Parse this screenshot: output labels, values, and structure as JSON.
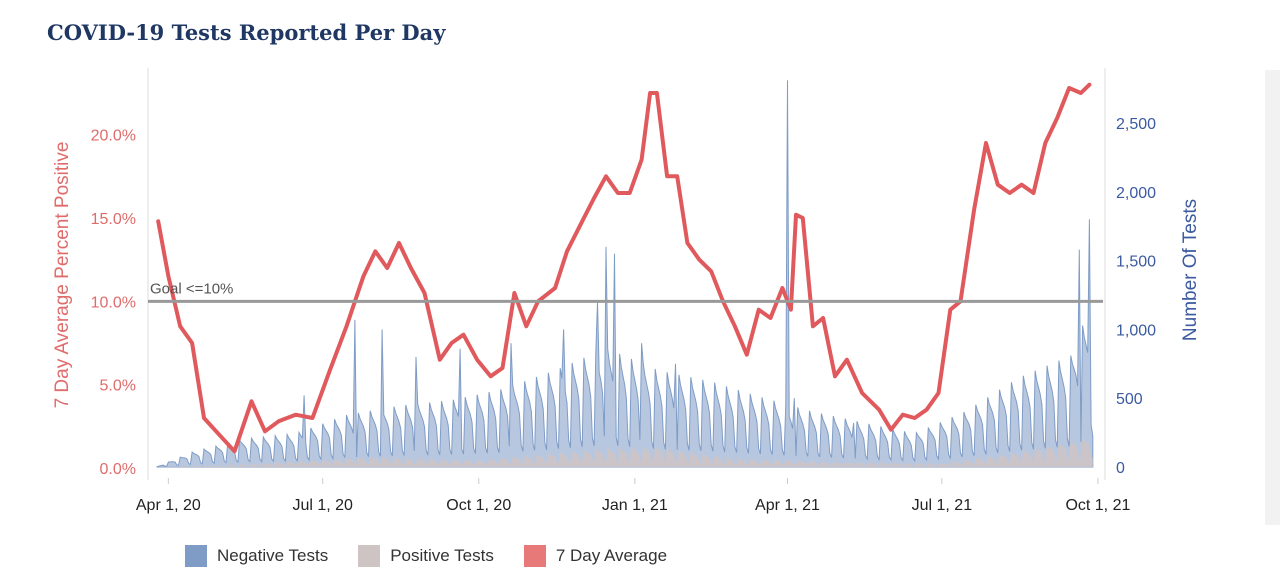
{
  "title": "COVID-19 Tests Reported Per Day",
  "colors": {
    "negative": "#7f9cc6",
    "negative_fill": "#9fb4d6",
    "positive": "#cfc4c4",
    "average": "#e0595d",
    "goal": "#999999",
    "left_axis": "#e06b6b",
    "right_axis": "#3b5aa0"
  },
  "legend": [
    {
      "label": "Negative Tests",
      "color": "#7f9cc6"
    },
    {
      "label": "Positive Tests",
      "color": "#cfc4c4"
    },
    {
      "label": "7 Day Average",
      "color": "#e87979"
    }
  ],
  "chart_data": {
    "type": "line",
    "title": "COVID-19 Tests Reported Per Day",
    "x_start": "2020-03-25",
    "x_end": "2021-09-28",
    "xlim": [
      "2020-03-20",
      "2021-10-04"
    ],
    "x_ticks": [
      {
        "date": "2020-04-01",
        "label": "Apr 1, 20"
      },
      {
        "date": "2020-07-01",
        "label": "Jul 1, 20"
      },
      {
        "date": "2020-10-01",
        "label": "Oct 1, 20"
      },
      {
        "date": "2021-01-01",
        "label": "Jan 1, 21"
      },
      {
        "date": "2021-04-01",
        "label": "Apr 1, 21"
      },
      {
        "date": "2021-07-01",
        "label": "Jul 1, 21"
      },
      {
        "date": "2021-10-01",
        "label": "Oct 1, 21"
      }
    ],
    "y_left": {
      "label": "7 Day Average Percent Positive",
      "ylim": [
        -0.6,
        24.0
      ],
      "ticks": [
        {
          "v": 0,
          "label": "0.0%"
        },
        {
          "v": 5,
          "label": "5.0%"
        },
        {
          "v": 10,
          "label": "10.0%"
        },
        {
          "v": 15,
          "label": "15.0%"
        },
        {
          "v": 20,
          "label": "20.0%"
        }
      ]
    },
    "y_right": {
      "label": "Number Of Tests",
      "ylim": [
        -80,
        2900
      ],
      "ticks": [
        {
          "v": 0,
          "label": "0"
        },
        {
          "v": 500,
          "label": "500"
        },
        {
          "v": 1000,
          "label": "1,000"
        },
        {
          "v": 1500,
          "label": "1,500"
        },
        {
          "v": 2000,
          "label": "2,000"
        },
        {
          "v": 2500,
          "label": "2,500"
        }
      ]
    },
    "goal": {
      "value": 10,
      "label": "Goal <=10%"
    },
    "series": [
      {
        "name": "7 Day Average",
        "axis": "left",
        "points": [
          [
            "2020-03-26",
            14.8
          ],
          [
            "2020-04-01",
            11.5
          ],
          [
            "2020-04-08",
            8.5
          ],
          [
            "2020-04-15",
            7.5
          ],
          [
            "2020-04-22",
            3.0
          ],
          [
            "2020-05-01",
            2.0
          ],
          [
            "2020-05-10",
            1.0
          ],
          [
            "2020-05-20",
            4.0
          ],
          [
            "2020-05-28",
            2.2
          ],
          [
            "2020-06-05",
            2.8
          ],
          [
            "2020-06-15",
            3.2
          ],
          [
            "2020-06-25",
            3.0
          ],
          [
            "2020-07-05",
            5.8
          ],
          [
            "2020-07-15",
            8.5
          ],
          [
            "2020-07-25",
            11.5
          ],
          [
            "2020-08-01",
            13.0
          ],
          [
            "2020-08-08",
            12.0
          ],
          [
            "2020-08-15",
            13.5
          ],
          [
            "2020-08-22",
            12.0
          ],
          [
            "2020-08-30",
            10.5
          ],
          [
            "2020-09-08",
            6.5
          ],
          [
            "2020-09-15",
            7.5
          ],
          [
            "2020-09-22",
            8.0
          ],
          [
            "2020-09-30",
            6.5
          ],
          [
            "2020-10-08",
            5.5
          ],
          [
            "2020-10-15",
            6.0
          ],
          [
            "2020-10-22",
            10.5
          ],
          [
            "2020-10-29",
            8.5
          ],
          [
            "2020-11-05",
            10.0
          ],
          [
            "2020-11-15",
            10.8
          ],
          [
            "2020-11-22",
            13.0
          ],
          [
            "2020-12-01",
            14.8
          ],
          [
            "2020-12-08",
            16.2
          ],
          [
            "2020-12-15",
            17.5
          ],
          [
            "2020-12-22",
            16.5
          ],
          [
            "2020-12-29",
            16.5
          ],
          [
            "2021-01-05",
            18.5
          ],
          [
            "2021-01-10",
            22.5
          ],
          [
            "2021-01-14",
            22.5
          ],
          [
            "2021-01-20",
            17.5
          ],
          [
            "2021-01-26",
            17.5
          ],
          [
            "2021-02-01",
            13.5
          ],
          [
            "2021-02-08",
            12.5
          ],
          [
            "2021-02-15",
            11.8
          ],
          [
            "2021-02-22",
            10.0
          ],
          [
            "2021-03-01",
            8.5
          ],
          [
            "2021-03-08",
            6.8
          ],
          [
            "2021-03-15",
            9.5
          ],
          [
            "2021-03-22",
            9.0
          ],
          [
            "2021-03-29",
            10.8
          ],
          [
            "2021-04-03",
            9.5
          ],
          [
            "2021-04-06",
            15.2
          ],
          [
            "2021-04-10",
            15.0
          ],
          [
            "2021-04-16",
            8.5
          ],
          [
            "2021-04-22",
            9.0
          ],
          [
            "2021-04-29",
            5.5
          ],
          [
            "2021-05-06",
            6.5
          ],
          [
            "2021-05-15",
            4.5
          ],
          [
            "2021-05-25",
            3.5
          ],
          [
            "2021-06-01",
            2.3
          ],
          [
            "2021-06-08",
            3.2
          ],
          [
            "2021-06-15",
            3.0
          ],
          [
            "2021-06-22",
            3.5
          ],
          [
            "2021-06-29",
            4.5
          ],
          [
            "2021-07-06",
            9.5
          ],
          [
            "2021-07-12",
            10.0
          ],
          [
            "2021-07-20",
            15.5
          ],
          [
            "2021-07-27",
            19.5
          ],
          [
            "2021-08-03",
            17.0
          ],
          [
            "2021-08-10",
            16.5
          ],
          [
            "2021-08-17",
            17.0
          ],
          [
            "2021-08-24",
            16.5
          ],
          [
            "2021-08-31",
            19.5
          ],
          [
            "2021-09-07",
            21.0
          ],
          [
            "2021-09-14",
            22.8
          ],
          [
            "2021-09-21",
            22.5
          ],
          [
            "2021-09-26",
            23.0
          ]
        ]
      },
      {
        "name": "Negative Tests",
        "axis": "right",
        "envelope": [
          [
            "2020-03-25",
            0
          ],
          [
            "2020-04-15",
            80
          ],
          [
            "2020-05-15",
            150
          ],
          [
            "2020-06-15",
            180
          ],
          [
            "2020-07-15",
            280
          ],
          [
            "2020-08-15",
            330
          ],
          [
            "2020-09-15",
            360
          ],
          [
            "2020-10-15",
            420
          ],
          [
            "2020-11-15",
            520
          ],
          [
            "2020-12-15",
            640
          ],
          [
            "2021-01-15",
            520
          ],
          [
            "2021-02-15",
            460
          ],
          [
            "2021-03-15",
            380
          ],
          [
            "2021-04-15",
            300
          ],
          [
            "2021-05-15",
            240
          ],
          [
            "2021-06-15",
            180
          ],
          [
            "2021-07-15",
            300
          ],
          [
            "2021-08-15",
            480
          ],
          [
            "2021-09-15",
            600
          ],
          [
            "2021-09-28",
            900
          ]
        ],
        "spikes": [
          [
            "2020-06-20",
            520
          ],
          [
            "2020-07-20",
            1070
          ],
          [
            "2020-08-05",
            1000
          ],
          [
            "2020-08-25",
            800
          ],
          [
            "2020-09-20",
            860
          ],
          [
            "2020-10-20",
            900
          ],
          [
            "2020-11-20",
            1000
          ],
          [
            "2020-12-10",
            1200
          ],
          [
            "2020-12-15",
            1600
          ],
          [
            "2020-12-20",
            1550
          ],
          [
            "2021-01-05",
            900
          ],
          [
            "2021-01-25",
            750
          ],
          [
            "2021-04-01",
            2810
          ],
          [
            "2021-04-05",
            500
          ],
          [
            "2021-05-10",
            320
          ],
          [
            "2021-09-20",
            1580
          ],
          [
            "2021-09-26",
            1800
          ]
        ]
      },
      {
        "name": "Positive Tests",
        "axis": "right",
        "envelope": [
          [
            "2020-03-25",
            0
          ],
          [
            "2020-05-15",
            15
          ],
          [
            "2020-08-01",
            60
          ],
          [
            "2020-10-01",
            40
          ],
          [
            "2020-12-15",
            110
          ],
          [
            "2021-01-15",
            120
          ],
          [
            "2021-03-01",
            50
          ],
          [
            "2021-05-01",
            30
          ],
          [
            "2021-07-01",
            20
          ],
          [
            "2021-08-15",
            90
          ],
          [
            "2021-09-28",
            180
          ]
        ]
      }
    ]
  }
}
